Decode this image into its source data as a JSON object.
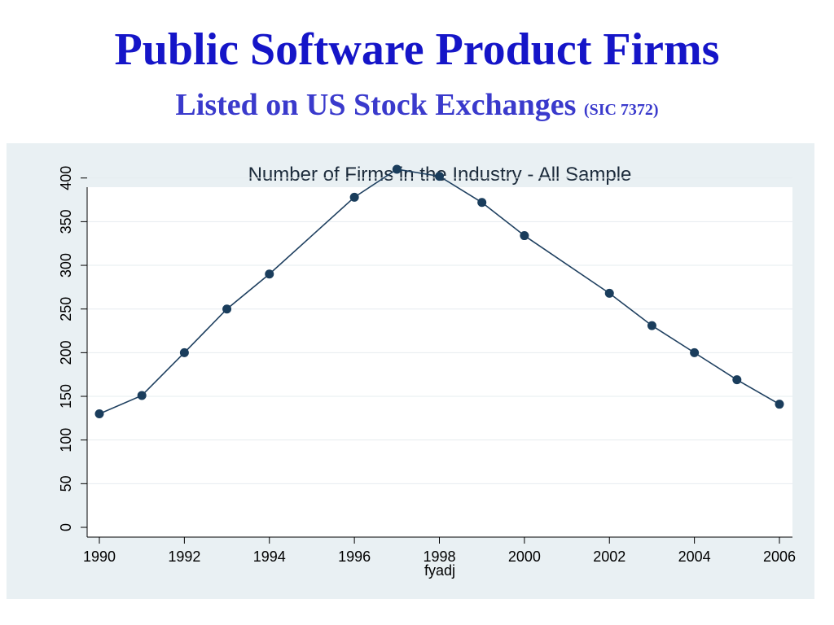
{
  "slide": {
    "title": "Public Software Product Firms",
    "subtitle": "Listed on US Stock Exchanges",
    "subtitle_note": "(SIC 7372)"
  },
  "colors": {
    "title": "#1515c8",
    "subtitle": "#3a3acc",
    "panel_background": "#e9f0f3",
    "plot_background": "#ffffff",
    "line": "#1f4060",
    "marker": "#1a3d5c",
    "grid": "#e6ecef"
  },
  "chart_data": {
    "type": "line",
    "title": "Number of Firms in the Industry - All Sample",
    "xlabel": "fyadj",
    "ylabel": "",
    "x": [
      1990,
      1991,
      1992,
      1993,
      1994,
      1996,
      1997,
      1998,
      1999,
      2000,
      2002,
      2003,
      2004,
      2005,
      2006
    ],
    "series": [
      {
        "name": "",
        "values": [
          130,
          151,
          200,
          250,
          290,
          378,
          410,
          402,
          372,
          334,
          268,
          231,
          200,
          169,
          141
        ]
      }
    ],
    "xlim": [
      1990,
      2006
    ],
    "ylim": [
      0,
      410
    ],
    "xticks": [
      1990,
      1992,
      1994,
      1996,
      1998,
      2000,
      2002,
      2004,
      2006
    ],
    "yticks": [
      0,
      50,
      100,
      150,
      200,
      250,
      300,
      350,
      400
    ],
    "grid": true,
    "markers": true
  }
}
